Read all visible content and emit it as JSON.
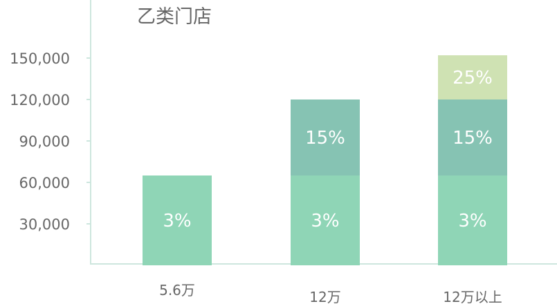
{
  "chart_data": {
    "type": "bar",
    "stacked": true,
    "title": "乙类门店",
    "categories": [
      "5.6万",
      "12万",
      "12万以上"
    ],
    "series": [
      {
        "values": [
          65000,
          65000,
          65000
        ],
        "labels": [
          "3%",
          "3%",
          "3%"
        ],
        "color": "#8fd5b6"
      },
      {
        "values": [
          0,
          55000,
          55000
        ],
        "labels": [
          "",
          "15%",
          "15%"
        ],
        "color": "#86c3b3"
      },
      {
        "values": [
          0,
          0,
          32000
        ],
        "labels": [
          "",
          "",
          "25%"
        ],
        "color": "#cfe2b3"
      }
    ],
    "yticks": [
      "30,000",
      "60,000",
      "90,000",
      "120,000",
      "150,000"
    ],
    "ytick_values": [
      30000,
      60000,
      90000,
      120000,
      150000
    ],
    "ylim": [
      0,
      150000
    ],
    "grid": false,
    "axis_color": "#cde6de"
  }
}
